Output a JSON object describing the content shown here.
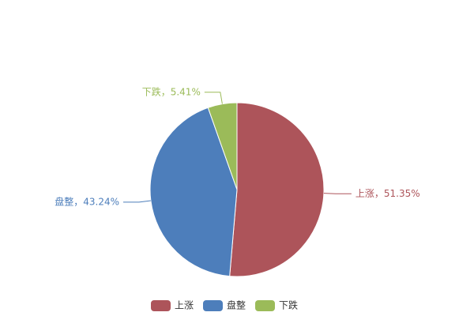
{
  "chart_data": {
    "type": "pie",
    "categories": [
      "上涨",
      "盘整",
      "下跌"
    ],
    "values": [
      51.35,
      43.24,
      5.41
    ],
    "value_labels": [
      "上涨，51.35%",
      "盘整，43.24%",
      "下跌，5.41%"
    ],
    "colors": [
      "#ad545a",
      "#4d7ebb",
      "#9bbb59"
    ],
    "legend": "bottom"
  }
}
